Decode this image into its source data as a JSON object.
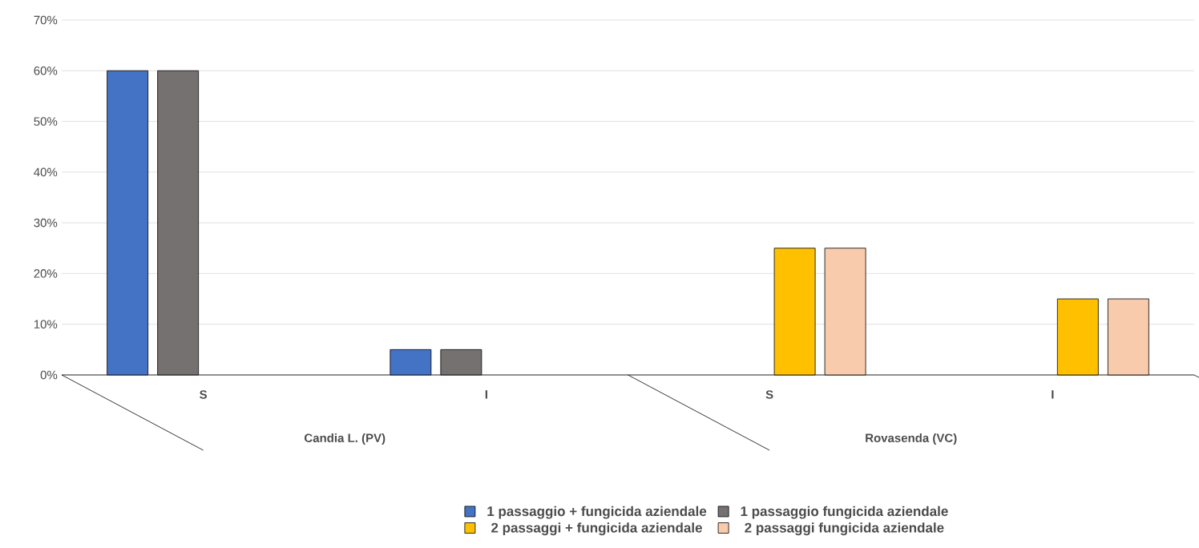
{
  "chart_data": {
    "type": "bar",
    "categories": [
      "S",
      "I",
      "S",
      "I"
    ],
    "annotations": [
      "Candia L. (PV)",
      "Rovasenda (VC)"
    ],
    "series": [
      {
        "name": "1 passaggio + fungicida aziendale",
        "color": "#4472c4",
        "values": [
          60,
          5,
          null,
          null
        ]
      },
      {
        "name": "1 passaggio fungicida aziendale",
        "color": "#767171",
        "values": [
          60,
          5,
          null,
          null
        ]
      },
      {
        "name": "2 passaggi + fungicida aziendale",
        "color": "#ffc000",
        "values": [
          null,
          null,
          25,
          15
        ]
      },
      {
        "name": "2 passaggi fungicida aziendale",
        "color": "#f8cbad",
        "values": [
          null,
          null,
          25,
          15
        ]
      }
    ],
    "ylim": [
      0,
      70
    ],
    "yticks": [
      {
        "value": 0,
        "label": "0%"
      },
      {
        "value": 10,
        "label": "10%"
      },
      {
        "value": 20,
        "label": "20%"
      },
      {
        "value": 30,
        "label": "30%"
      },
      {
        "value": 40,
        "label": "40%"
      },
      {
        "value": 50,
        "label": "50%"
      },
      {
        "value": 60,
        "label": "60%"
      },
      {
        "value": 70,
        "label": "70%"
      }
    ],
    "grid": "y",
    "legend": "bottom"
  }
}
